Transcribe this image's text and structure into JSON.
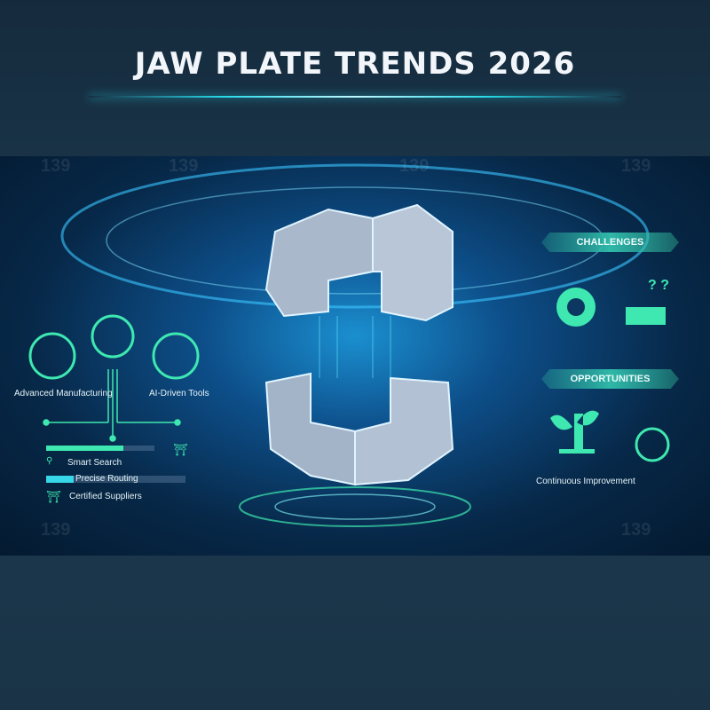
{
  "header": {
    "title": "JAW PLATE TRENDS 2026"
  },
  "left": {
    "icons": [
      {
        "label": "Advanced Manufacturing",
        "icon": "robot-arm-icon"
      },
      {
        "label": "",
        "icon": "gear-network-icon"
      },
      {
        "label": "AI-Driven Tools",
        "icon": "magnifier-icon"
      }
    ],
    "features": [
      {
        "label": "Smart Search",
        "icon": "search-shield-icon",
        "progress": 0.6
      },
      {
        "label": "Precise Routing",
        "icon": "",
        "progress": 0.2
      },
      {
        "label": "Certified Suppliers",
        "icon": "shield-icon"
      }
    ]
  },
  "right": {
    "challenges_label": "CHALLENGES",
    "challenge_icons": [
      "gear-icon",
      "factory-question-icon"
    ],
    "opportunities_label": "OPPORTUNITIES",
    "opportunity_icons": [
      "sprout-icon",
      "globe-leaf-recycle-icon"
    ],
    "opportunity_caption": "Continuous Improvement"
  },
  "watermark": "139",
  "colors": {
    "accent": "#3ee8b0",
    "cyan": "#27d8e8",
    "background": "#1c3347"
  }
}
